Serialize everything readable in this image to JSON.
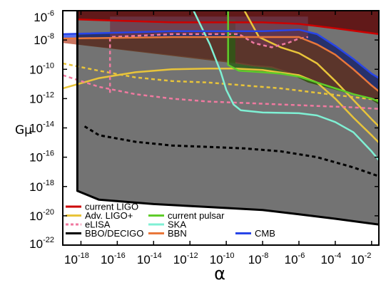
{
  "chart_data": {
    "type": "area",
    "xlabel": "α",
    "ylabel": "Gμ",
    "x_scale": "log",
    "y_scale": "log",
    "xlim_exp": [
      -19,
      -1.6
    ],
    "ylim_exp": [
      -22,
      -6
    ],
    "x_tick_exps": [
      -18,
      -16,
      -14,
      -12,
      -10,
      -8,
      -6,
      -4,
      -2
    ],
    "y_tick_exps": [
      -6,
      -8,
      -10,
      -12,
      -14,
      -16,
      -18,
      -20,
      -22
    ],
    "tick_base": "10",
    "grid": false,
    "legend_position": "bottom-left",
    "legend": [
      {
        "label": "current LIGO",
        "color": "#cc0000",
        "style": "solid"
      },
      {
        "label": "Adv. LIGO+",
        "color": "#e8c43a",
        "style": "solid"
      },
      {
        "label": "eLISA",
        "color": "#f07aa0",
        "style": "dashed"
      },
      {
        "label": "BBO/DECIGO",
        "color": "#000000",
        "style": "solid"
      },
      {
        "label": "current pulsar",
        "color": "#5fcc2a",
        "style": "solid"
      },
      {
        "label": "SKA",
        "color": "#7ff0d4",
        "style": "solid"
      },
      {
        "label": "BBN",
        "color": "#e9773a",
        "style": "solid"
      },
      {
        "label": "CMB",
        "color": "#2845e8",
        "style": "solid"
      }
    ],
    "regions": [
      {
        "name": "current LIGO",
        "color": "#cc0000",
        "points": [
          [
            -18.2,
            -6.6
          ],
          [
            -13,
            -6.8
          ],
          [
            -8,
            -6.8
          ],
          [
            -6,
            -6.9
          ],
          [
            -4,
            -7.2
          ],
          [
            -1.6,
            -7.6
          ],
          [
            -1.6,
            -6
          ],
          [
            -18.2,
            -6
          ]
        ]
      },
      {
        "name": "CMB",
        "color": "#2845e8",
        "points": [
          [
            -19,
            -7.6
          ],
          [
            -13,
            -7.4
          ],
          [
            -8,
            -7.4
          ],
          [
            -6,
            -7.3
          ],
          [
            -5,
            -7.6
          ],
          [
            -4,
            -8.4
          ],
          [
            -3,
            -9.3
          ],
          [
            -2,
            -10.3
          ],
          [
            -1.6,
            -10.6
          ],
          [
            -1.6,
            -12.3
          ],
          [
            -2,
            -12
          ],
          [
            -4,
            -11.3
          ],
          [
            -5.5,
            -10.8
          ],
          [
            -6.5,
            -10.2
          ],
          [
            -7.5,
            -9.8
          ],
          [
            -8.5,
            -9.7
          ],
          [
            -9.5,
            -9.5
          ],
          [
            -19,
            -8.2
          ]
        ]
      },
      {
        "name": "BBN",
        "color": "#e9773a",
        "points": [
          [
            -19,
            -7.9
          ],
          [
            -13,
            -7.8
          ],
          [
            -8,
            -7.8
          ],
          [
            -6,
            -7.8
          ],
          [
            -5,
            -8.3
          ],
          [
            -4,
            -9
          ],
          [
            -3,
            -10
          ],
          [
            -2,
            -11.1
          ],
          [
            -1.6,
            -11.5
          ],
          [
            -1.6,
            -12.4
          ],
          [
            -2,
            -12.1
          ],
          [
            -4,
            -11.4
          ],
          [
            -5.5,
            -10.9
          ],
          [
            -6.5,
            -10.3
          ],
          [
            -7.5,
            -9.9
          ],
          [
            -8.5,
            -9.8
          ],
          [
            -9.5,
            -9.6
          ],
          [
            -19,
            -8.2
          ]
        ]
      },
      {
        "name": "current pulsar",
        "color": "#5fcc2a",
        "points": [
          [
            -9.9,
            -6
          ],
          [
            -9.9,
            -9.7
          ],
          [
            -9.3,
            -10.1
          ],
          [
            -8,
            -10.2
          ],
          [
            -7,
            -10.3
          ],
          [
            -6,
            -10.5
          ],
          [
            -5,
            -10.9
          ],
          [
            -4,
            -11.3
          ],
          [
            -3,
            -11.7
          ],
          [
            -2,
            -12
          ],
          [
            -1.6,
            -12.2
          ],
          [
            -1.6,
            -12.4
          ],
          [
            -2,
            -12.1
          ],
          [
            -4,
            -11.4
          ],
          [
            -5.5,
            -10.9
          ],
          [
            -6.5,
            -10.3
          ],
          [
            -7.5,
            -9.9
          ],
          [
            -8.5,
            -9.8
          ],
          [
            -9.5,
            -9.6
          ],
          [
            -9.5,
            -6.6
          ],
          [
            -9.9,
            -6.6
          ]
        ]
      },
      {
        "name": "eLISA",
        "color": "#f07aa0",
        "points": [
          [
            -16.4,
            -7.8
          ],
          [
            -13,
            -7.6
          ],
          [
            -9.3,
            -7.6
          ],
          [
            -8.5,
            -8.2
          ],
          [
            -7.5,
            -8.5
          ],
          [
            -6.6,
            -8.2
          ],
          [
            -6,
            -7.9
          ],
          [
            -5.5,
            -7.8
          ],
          [
            -5.5,
            -6.4
          ],
          [
            -16.4,
            -6.4
          ]
        ]
      },
      {
        "name": "BBO/DECIGO",
        "color": "#000000",
        "points": [
          [
            -18.2,
            -6
          ],
          [
            -18.2,
            -18.3
          ],
          [
            -17,
            -18.9
          ],
          [
            -14,
            -19.2
          ],
          [
            -11,
            -19.4
          ],
          [
            -8,
            -19.6
          ],
          [
            -6,
            -19.9
          ],
          [
            -4,
            -20.2
          ],
          [
            -1.6,
            -20.6
          ],
          [
            -1.6,
            -6
          ]
        ]
      }
    ],
    "curves": [
      {
        "name": "current LIGO",
        "color": "#cc0000",
        "style": "solid",
        "points": [
          [
            -18.2,
            -6.6
          ],
          [
            -13,
            -6.8
          ],
          [
            -8,
            -6.8
          ],
          [
            -6,
            -6.9
          ],
          [
            -4,
            -7.2
          ],
          [
            -1.6,
            -7.6
          ]
        ]
      },
      {
        "name": "Adv. LIGO+",
        "color": "#e8c43a",
        "style": "solid",
        "points": [
          [
            -19,
            -11.3
          ],
          [
            -17,
            -10.6
          ],
          [
            -15,
            -10.2
          ],
          [
            -13,
            -10
          ],
          [
            -11,
            -9.95
          ],
          [
            -9.5,
            -9.95
          ],
          [
            -8,
            -10.05
          ],
          [
            -6,
            -10.4
          ],
          [
            -5,
            -10.9
          ],
          [
            -4,
            -12
          ],
          [
            -3,
            -13.3
          ],
          [
            -2,
            -14.5
          ],
          [
            -1.6,
            -15
          ]
        ]
      },
      {
        "name": "Adv. LIGO+",
        "color": "#e8c43a",
        "style": "solid",
        "points": [
          [
            -9,
            -6
          ],
          [
            -8.2,
            -7.8
          ],
          [
            -7,
            -8.5
          ],
          [
            -6,
            -8.9
          ],
          [
            -5,
            -9.6
          ],
          [
            -4,
            -10.8
          ],
          [
            -3,
            -12.1
          ],
          [
            -2,
            -13.4
          ],
          [
            -1.6,
            -13.9
          ]
        ]
      },
      {
        "name": "Adv. LIGO+",
        "color": "#e8c43a",
        "style": "dashed",
        "points": [
          [
            -19,
            -9.6
          ],
          [
            -17,
            -10.1
          ],
          [
            -15,
            -10.55
          ],
          [
            -13,
            -10.8
          ],
          [
            -11,
            -10.9
          ],
          [
            -9,
            -11.1
          ],
          [
            -7,
            -11.3
          ],
          [
            -5,
            -11.6
          ],
          [
            -3,
            -11.9
          ],
          [
            -1.6,
            -12.1
          ]
        ]
      },
      {
        "name": "eLISA",
        "color": "#f07aa0",
        "style": "dashed",
        "points": [
          [
            -19,
            -10.4
          ],
          [
            -17,
            -11.2
          ],
          [
            -15,
            -11.7
          ],
          [
            -13,
            -12
          ],
          [
            -11,
            -12.2
          ],
          [
            -9,
            -12.3
          ],
          [
            -7,
            -12.4
          ],
          [
            -5,
            -12.5
          ],
          [
            -3,
            -12.6
          ],
          [
            -1.6,
            -12.7
          ]
        ]
      },
      {
        "name": "eLISA",
        "color": "#f07aa0",
        "style": "dashed",
        "points": [
          [
            -16.4,
            -11.6
          ],
          [
            -16.4,
            -7.8
          ],
          [
            -13,
            -7.6
          ],
          [
            -9.3,
            -7.6
          ],
          [
            -8.5,
            -8.2
          ],
          [
            -7.5,
            -8.5
          ],
          [
            -6.6,
            -8.2
          ],
          [
            -6,
            -7.9
          ],
          [
            -5.5,
            -7.8
          ]
        ]
      },
      {
        "name": "SKA",
        "color": "#7ff0d4",
        "style": "solid",
        "points": [
          [
            -11.8,
            -6
          ],
          [
            -10.9,
            -8.3
          ],
          [
            -10.3,
            -10.2
          ],
          [
            -10,
            -11.4
          ],
          [
            -9.6,
            -12.4
          ],
          [
            -9.2,
            -12.8
          ],
          [
            -8,
            -12.95
          ],
          [
            -6,
            -13
          ],
          [
            -5,
            -13.15
          ],
          [
            -4,
            -13.6
          ],
          [
            -3,
            -14.3
          ],
          [
            -2,
            -15.6
          ],
          [
            -1.6,
            -16.2
          ]
        ]
      },
      {
        "name": "current pulsar",
        "color": "#5fcc2a",
        "style": "solid",
        "points": [
          [
            -9.9,
            -6
          ],
          [
            -9.9,
            -9.7
          ],
          [
            -9.3,
            -10.1
          ],
          [
            -8,
            -10.2
          ],
          [
            -7,
            -10.3
          ],
          [
            -6,
            -10.5
          ],
          [
            -5,
            -10.9
          ],
          [
            -4,
            -11.3
          ],
          [
            -3,
            -11.7
          ],
          [
            -2,
            -12
          ],
          [
            -1.6,
            -12.2
          ]
        ]
      },
      {
        "name": "BBN",
        "color": "#e9773a",
        "style": "solid",
        "points": [
          [
            -19,
            -7.9
          ],
          [
            -13,
            -7.8
          ],
          [
            -8,
            -7.8
          ],
          [
            -6,
            -7.8
          ],
          [
            -5,
            -8.3
          ],
          [
            -4,
            -9
          ],
          [
            -3,
            -10
          ],
          [
            -2,
            -11.1
          ],
          [
            -1.6,
            -11.5
          ]
        ]
      },
      {
        "name": "CMB",
        "color": "#2845e8",
        "style": "solid",
        "points": [
          [
            -19,
            -7.6
          ],
          [
            -13,
            -7.4
          ],
          [
            -8,
            -7.4
          ],
          [
            -6,
            -7.3
          ],
          [
            -5,
            -7.6
          ],
          [
            -4,
            -8.4
          ],
          [
            -3,
            -9.3
          ],
          [
            -2,
            -10.3
          ],
          [
            -1.6,
            -10.6
          ]
        ]
      },
      {
        "name": "BBO/DECIGO",
        "color": "#000000",
        "style": "solid",
        "points": [
          [
            -18.2,
            -6
          ],
          [
            -18.2,
            -18.3
          ],
          [
            -17,
            -18.9
          ],
          [
            -14,
            -19.2
          ],
          [
            -11,
            -19.4
          ],
          [
            -8,
            -19.6
          ],
          [
            -6,
            -19.9
          ],
          [
            -4,
            -20.2
          ],
          [
            -1.6,
            -20.6
          ]
        ]
      },
      {
        "name": "BBO/DECIGO",
        "color": "#000000",
        "style": "dashed",
        "points": [
          [
            -17.8,
            -13.9
          ],
          [
            -17,
            -14.5
          ],
          [
            -15,
            -14.95
          ],
          [
            -13,
            -15.2
          ],
          [
            -11,
            -15.3
          ],
          [
            -9,
            -15.4
          ],
          [
            -7,
            -15.6
          ],
          [
            -5,
            -16
          ],
          [
            -3,
            -16.7
          ],
          [
            -1.6,
            -17.3
          ]
        ]
      }
    ]
  }
}
